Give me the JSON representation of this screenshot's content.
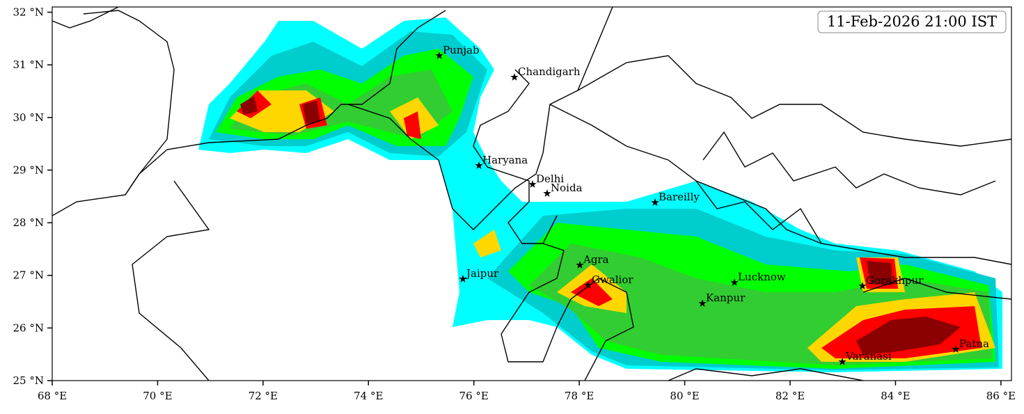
{
  "map": {
    "timestamp": "11-Feb-2026 21:00 IST",
    "xlim": [
      68,
      86.2
    ],
    "ylim": [
      25,
      32.1
    ],
    "xticks": [
      {
        "value": 68,
        "label": "68 °E"
      },
      {
        "value": 70,
        "label": "70 °E"
      },
      {
        "value": 72,
        "label": "72 °E"
      },
      {
        "value": 74,
        "label": "74 °E"
      },
      {
        "value": 76,
        "label": "76 °E"
      },
      {
        "value": 78,
        "label": "78 °E"
      },
      {
        "value": 80,
        "label": "80 °E"
      },
      {
        "value": 82,
        "label": "82 °E"
      },
      {
        "value": 84,
        "label": "84 °E"
      },
      {
        "value": 86,
        "label": "86 °E"
      }
    ],
    "yticks": [
      {
        "value": 25,
        "label": "25 °N"
      },
      {
        "value": 26,
        "label": "26 °N"
      },
      {
        "value": 27,
        "label": "27 °N"
      },
      {
        "value": 28,
        "label": "28 °N"
      },
      {
        "value": 29,
        "label": "29 °N"
      },
      {
        "value": 30,
        "label": "30 °N"
      },
      {
        "value": 31,
        "label": "31 °N"
      },
      {
        "value": 32,
        "label": "32 °N"
      }
    ],
    "places": [
      "Punjab",
      "Chandigarh",
      "Haryana",
      "Delhi",
      "Noida",
      "Bareilly",
      "Agra",
      "Jaipur",
      "Gwalior",
      "Lucknow",
      "Kanpur",
      "Gorakhpur",
      "Patna",
      "Varanasi"
    ]
  }
}
